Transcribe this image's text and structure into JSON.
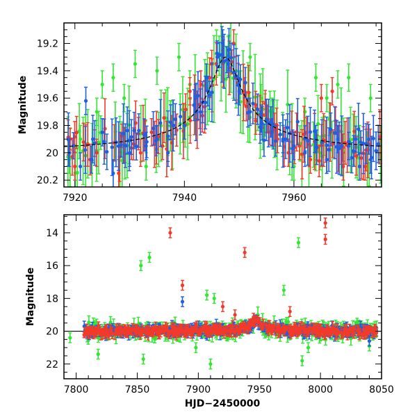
{
  "colors": {
    "green": "#33e633",
    "red": "#f23a2a",
    "blue": "#1f5fe0",
    "model": "#000000"
  },
  "chart_data": [
    {
      "type": "scatter",
      "panel": "top",
      "title": "",
      "xlabel": "",
      "ylabel": "Magnitude",
      "xlim": [
        7918,
        7976
      ],
      "ylim": [
        20.25,
        19.05
      ],
      "y_inverted": true,
      "xticks": [
        "7920",
        "7940",
        "7960"
      ],
      "yticks": [
        "19.2",
        "19.4",
        "19.6",
        "19.8",
        "20",
        "20.2"
      ],
      "grid": false,
      "legend": "none",
      "series": [
        {
          "color": "green",
          "note_points": "dense photometry with error bars, 7918–7976"
        },
        {
          "color": "red"
        },
        {
          "color": "blue"
        }
      ],
      "model_curve": {
        "baseline": 20.02,
        "peak_x": 7947.5,
        "peak_y": 19.3,
        "shape": "lensing-like brightening, dashed black line"
      },
      "sample_points": {
        "blue": [
          [
            7919,
            20.0
          ],
          [
            7921,
            20.1
          ],
          [
            7922,
            19.62
          ],
          [
            7923,
            20.05
          ],
          [
            7925,
            19.85
          ],
          [
            7927,
            20.15
          ],
          [
            7930,
            20.0
          ],
          [
            7933,
            19.95
          ],
          [
            7935,
            19.9
          ],
          [
            7937,
            20.0
          ],
          [
            7940,
            19.8
          ],
          [
            7942,
            19.6
          ],
          [
            7944,
            19.45
          ],
          [
            7946,
            19.3
          ],
          [
            7947,
            19.2
          ],
          [
            7948,
            19.35
          ],
          [
            7950,
            19.55
          ],
          [
            7952,
            19.7
          ],
          [
            7954,
            19.75
          ],
          [
            7956,
            19.85
          ],
          [
            7958,
            19.9
          ],
          [
            7960,
            19.95
          ],
          [
            7962,
            20.0
          ],
          [
            7964,
            19.9
          ],
          [
            7966,
            20.05
          ],
          [
            7968,
            19.9
          ],
          [
            7970,
            19.95
          ],
          [
            7972,
            20.1
          ],
          [
            7974,
            20.05
          ]
        ],
        "red": [
          [
            7920,
            20.1
          ],
          [
            7924,
            20.0
          ],
          [
            7928,
            20.15
          ],
          [
            7932,
            20.0
          ],
          [
            7934,
            19.85
          ],
          [
            7936,
            19.95
          ],
          [
            7938,
            19.8
          ],
          [
            7941,
            19.55
          ],
          [
            7943,
            19.5
          ],
          [
            7945,
            19.35
          ],
          [
            7947,
            19.25
          ],
          [
            7949,
            19.2
          ],
          [
            7951,
            19.55
          ],
          [
            7953,
            19.65
          ],
          [
            7955,
            19.75
          ],
          [
            7957,
            19.9
          ],
          [
            7959,
            20.0
          ],
          [
            7961,
            19.95
          ],
          [
            7963,
            20.05
          ],
          [
            7965,
            19.6
          ],
          [
            7967,
            19.55
          ],
          [
            7969,
            20.1
          ],
          [
            7971,
            20.0
          ],
          [
            7973,
            20.1
          ]
        ],
        "green": [
          [
            7919,
            20.05
          ],
          [
            7921,
            19.9
          ],
          [
            7924,
            19.7
          ],
          [
            7925,
            19.5
          ],
          [
            7927,
            19.45
          ],
          [
            7929,
            19.6
          ],
          [
            7931,
            19.35
          ],
          [
            7933,
            20.1
          ],
          [
            7935,
            19.4
          ],
          [
            7937,
            19.9
          ],
          [
            7939,
            19.3
          ],
          [
            7941,
            19.5
          ],
          [
            7944,
            19.45
          ],
          [
            7946,
            19.3
          ],
          [
            7948,
            19.25
          ],
          [
            7950,
            19.5
          ],
          [
            7952,
            19.3
          ],
          [
            7954,
            19.6
          ],
          [
            7956,
            19.7
          ],
          [
            7958,
            19.9
          ],
          [
            7960,
            20.1
          ],
          [
            7962,
            19.7
          ],
          [
            7964,
            19.45
          ],
          [
            7966,
            19.6
          ],
          [
            7968,
            19.5
          ],
          [
            7970,
            19.45
          ],
          [
            7972,
            19.9
          ],
          [
            7974,
            19.6
          ]
        ]
      }
    },
    {
      "type": "scatter",
      "panel": "bottom",
      "title": "",
      "xlabel": "HJD−2450000",
      "ylabel": "Magnitude",
      "xlim": [
        7790,
        8050
      ],
      "ylim": [
        22.9,
        12.9
      ],
      "y_inverted": true,
      "xticks": [
        "7800",
        "7850",
        "7900",
        "7950",
        "8000",
        "8050"
      ],
      "yticks": [
        "14",
        "16",
        "18",
        "20",
        "22"
      ],
      "grid": false,
      "legend": "none",
      "series": [
        {
          "color": "green"
        },
        {
          "color": "red"
        },
        {
          "color": "blue"
        }
      ],
      "outliers": {
        "red": [
          [
            7877,
            14.0
          ],
          [
            7887,
            17.2
          ],
          [
            7920,
            18.5
          ],
          [
            7938,
            15.2
          ],
          [
            8004,
            13.4
          ],
          [
            8004,
            14.4
          ],
          [
            7930,
            19.0
          ],
          [
            7975,
            18.8
          ]
        ],
        "green": [
          [
            7853,
            16.0
          ],
          [
            7860,
            15.5
          ],
          [
            7907,
            17.8
          ],
          [
            7913,
            18.0
          ],
          [
            7970,
            17.5
          ],
          [
            7982,
            14.6
          ],
          [
            7898,
            21.0
          ],
          [
            7910,
            22.0
          ],
          [
            7985,
            21.8
          ],
          [
            7855,
            21.7
          ],
          [
            7818,
            21.4
          ],
          [
            7795,
            20.4
          ],
          [
            7990,
            21.0
          ],
          [
            8040,
            20.9
          ]
        ],
        "blue": [
          [
            7887,
            18.2
          ],
          [
            8040,
            20.6
          ]
        ]
      },
      "baseline": 20.0
    }
  ]
}
